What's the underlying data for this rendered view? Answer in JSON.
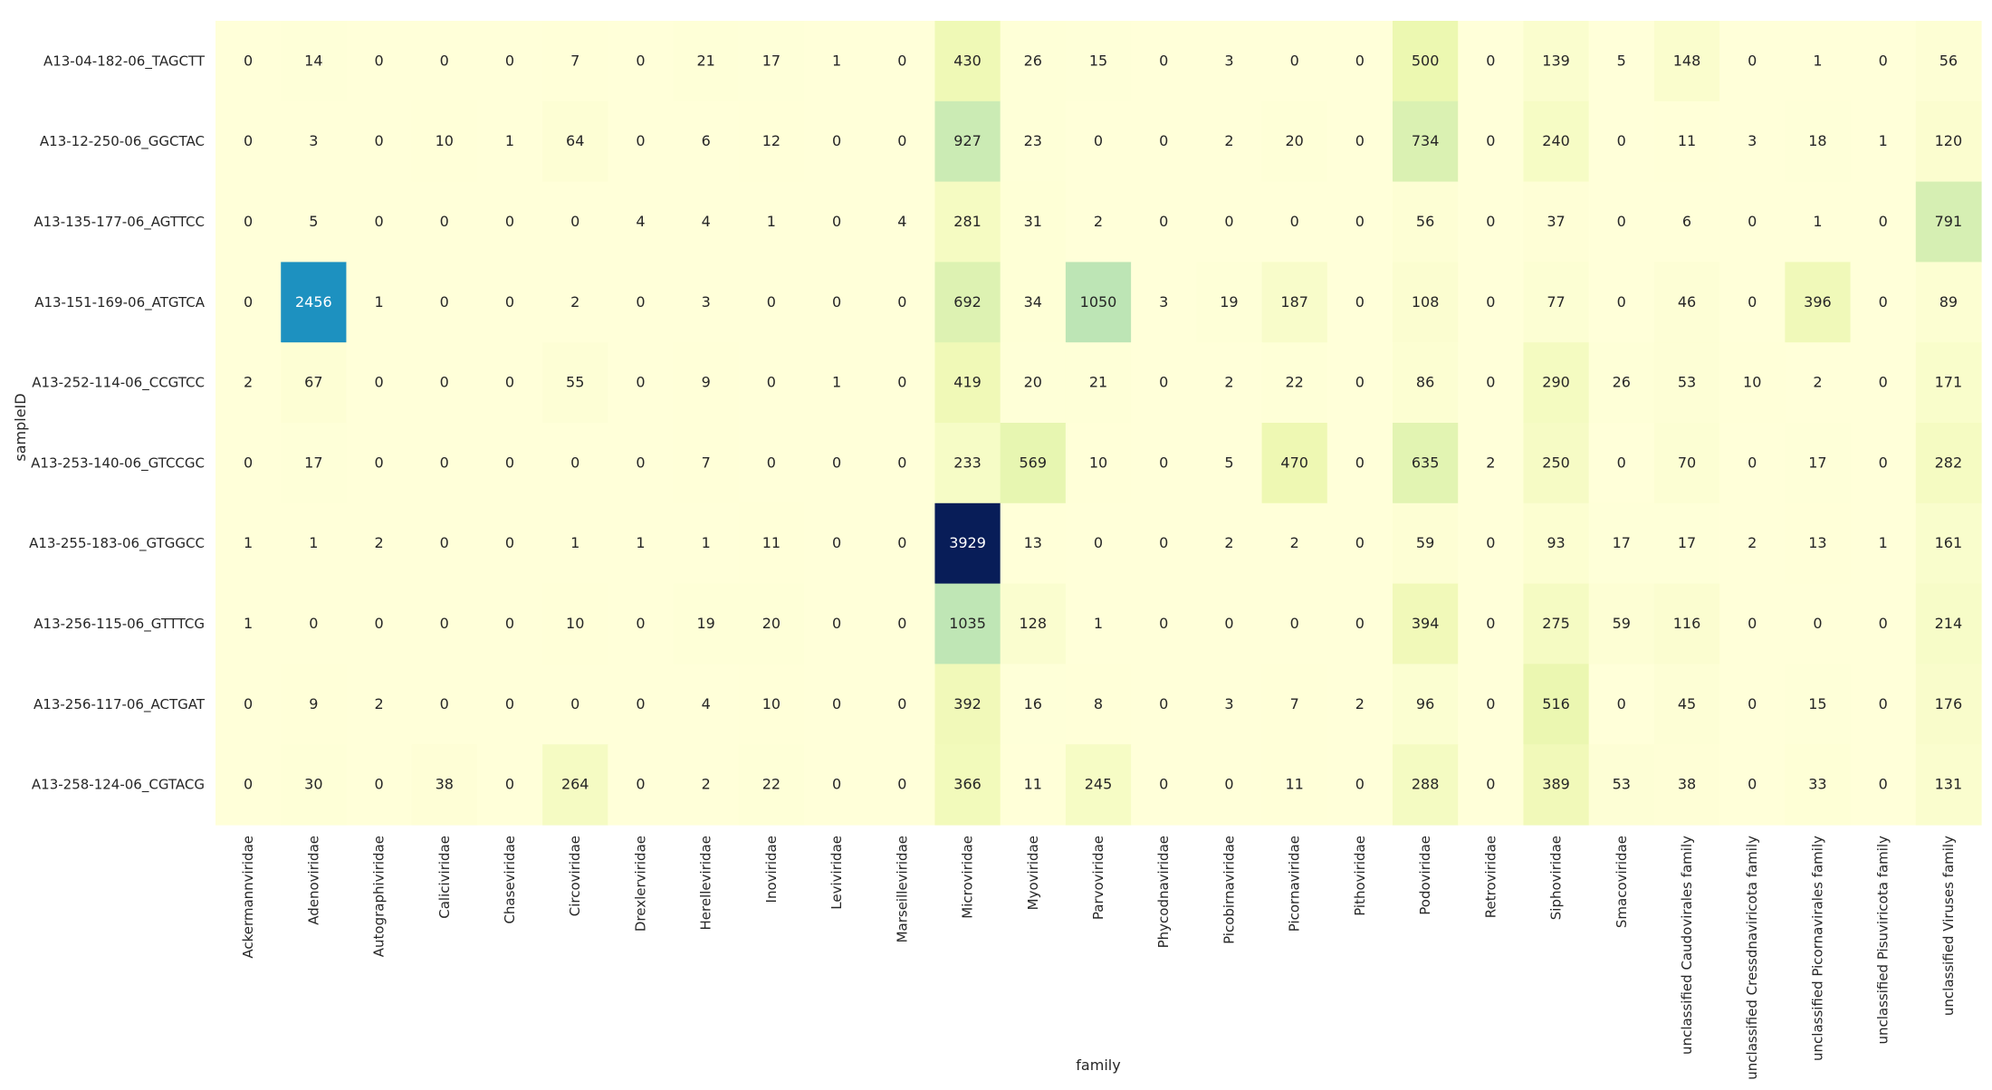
{
  "chart_data": {
    "type": "heatmap",
    "xlabel": "family",
    "ylabel": "sampleID",
    "rows": [
      "A13-04-182-06_TAGCTT",
      "A13-12-250-06_GGCTAC",
      "A13-135-177-06_AGTTCC",
      "A13-151-169-06_ATGTCA",
      "A13-252-114-06_CCGTCC",
      "A13-253-140-06_GTCCGC",
      "A13-255-183-06_GTGGCC",
      "A13-256-115-06_GTTTCG",
      "A13-256-117-06_ACTGAT",
      "A13-258-124-06_CGTACG"
    ],
    "columns": [
      "Ackermannviridae",
      "Adenoviridae",
      "Autographiviridae",
      "Caliciviridae",
      "Chaseviridae",
      "Circoviridae",
      "Drexlerviridae",
      "Herelleviridae",
      "Inoviridae",
      "Leviviridae",
      "Marseilleviridae",
      "Microviridae",
      "Myoviridae",
      "Parvoviridae",
      "Phycodnaviridae",
      "Picobirnaviridae",
      "Picornaviridae",
      "Pithoviridae",
      "Podoviridae",
      "Retroviridae",
      "Siphoviridae",
      "Smacoviridae",
      "unclassified Caudovirales family",
      "unclassified Cressdnaviricota family",
      "unclassified Picornavirales family",
      "unclassified Pisuviricota family",
      "unclassified Viruses family"
    ],
    "values": [
      [
        0,
        14,
        0,
        0,
        0,
        7,
        0,
        21,
        17,
        1,
        0,
        430,
        26,
        15,
        0,
        3,
        0,
        0,
        500,
        0,
        139,
        5,
        148,
        0,
        1,
        0,
        56
      ],
      [
        0,
        3,
        0,
        10,
        1,
        64,
        0,
        6,
        12,
        0,
        0,
        927,
        23,
        0,
        0,
        2,
        20,
        0,
        734,
        0,
        240,
        0,
        11,
        3,
        18,
        1,
        120
      ],
      [
        0,
        5,
        0,
        0,
        0,
        0,
        4,
        4,
        1,
        0,
        4,
        281,
        31,
        2,
        0,
        0,
        0,
        0,
        56,
        0,
        37,
        0,
        6,
        0,
        1,
        0,
        791
      ],
      [
        0,
        2456,
        1,
        0,
        0,
        2,
        0,
        3,
        0,
        0,
        0,
        692,
        34,
        1050,
        3,
        19,
        187,
        0,
        108,
        0,
        77,
        0,
        46,
        0,
        396,
        0,
        89
      ],
      [
        2,
        67,
        0,
        0,
        0,
        55,
        0,
        9,
        0,
        1,
        0,
        419,
        20,
        21,
        0,
        2,
        22,
        0,
        86,
        0,
        290,
        26,
        53,
        10,
        2,
        0,
        171
      ],
      [
        0,
        17,
        0,
        0,
        0,
        0,
        0,
        7,
        0,
        0,
        0,
        233,
        569,
        10,
        0,
        5,
        470,
        0,
        635,
        2,
        250,
        0,
        70,
        0,
        17,
        0,
        282
      ],
      [
        1,
        1,
        2,
        0,
        0,
        1,
        1,
        1,
        11,
        0,
        0,
        3929,
        13,
        0,
        0,
        2,
        2,
        0,
        59,
        0,
        93,
        17,
        17,
        2,
        13,
        1,
        161
      ],
      [
        1,
        0,
        0,
        0,
        0,
        10,
        0,
        19,
        20,
        0,
        0,
        1035,
        128,
        1,
        0,
        0,
        0,
        0,
        394,
        0,
        275,
        59,
        116,
        0,
        0,
        0,
        214
      ],
      [
        0,
        9,
        2,
        0,
        0,
        0,
        0,
        4,
        10,
        0,
        0,
        392,
        16,
        8,
        0,
        3,
        7,
        2,
        96,
        0,
        516,
        0,
        45,
        0,
        15,
        0,
        176
      ],
      [
        0,
        30,
        0,
        38,
        0,
        264,
        0,
        2,
        22,
        0,
        0,
        366,
        11,
        245,
        0,
        0,
        11,
        0,
        288,
        0,
        389,
        53,
        38,
        0,
        33,
        0,
        131
      ]
    ],
    "colormap": "YlGnBu",
    "vmin": 0,
    "vmax": 3929,
    "annotated": true,
    "colorbar": false,
    "colors": {
      "cell_text_dark": "#262626",
      "cell_text_light": "#ffffff",
      "axis_text": "#262626"
    }
  }
}
